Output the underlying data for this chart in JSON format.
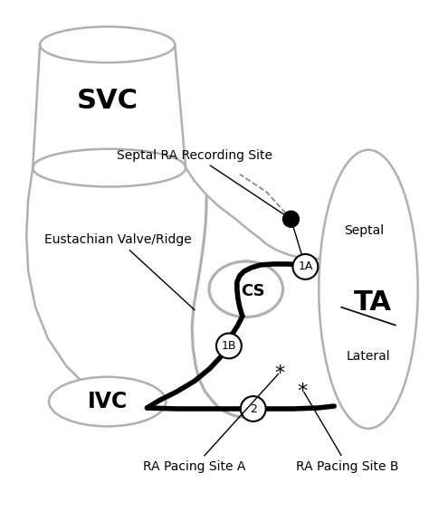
{
  "background_color": "#ffffff",
  "svc_label": "SVC",
  "ivc_label": "IVC",
  "ta_label": "TA",
  "cs_label": "CS",
  "septal_label": "Septal",
  "lateral_label": "Lateral",
  "label_1A": "1A",
  "label_1B": "1B",
  "label_2": "2",
  "label_septal_ra": "Septal RA Recording Site",
  "label_eustachian": "Eustachian Valve/Ridge",
  "label_pacing_a": "RA Pacing Site A",
  "label_pacing_b": "RA Pacing Site B",
  "gray": "#b0b0b0",
  "black": "#000000",
  "lw_gray": 1.8,
  "lw_thick": 4.0
}
